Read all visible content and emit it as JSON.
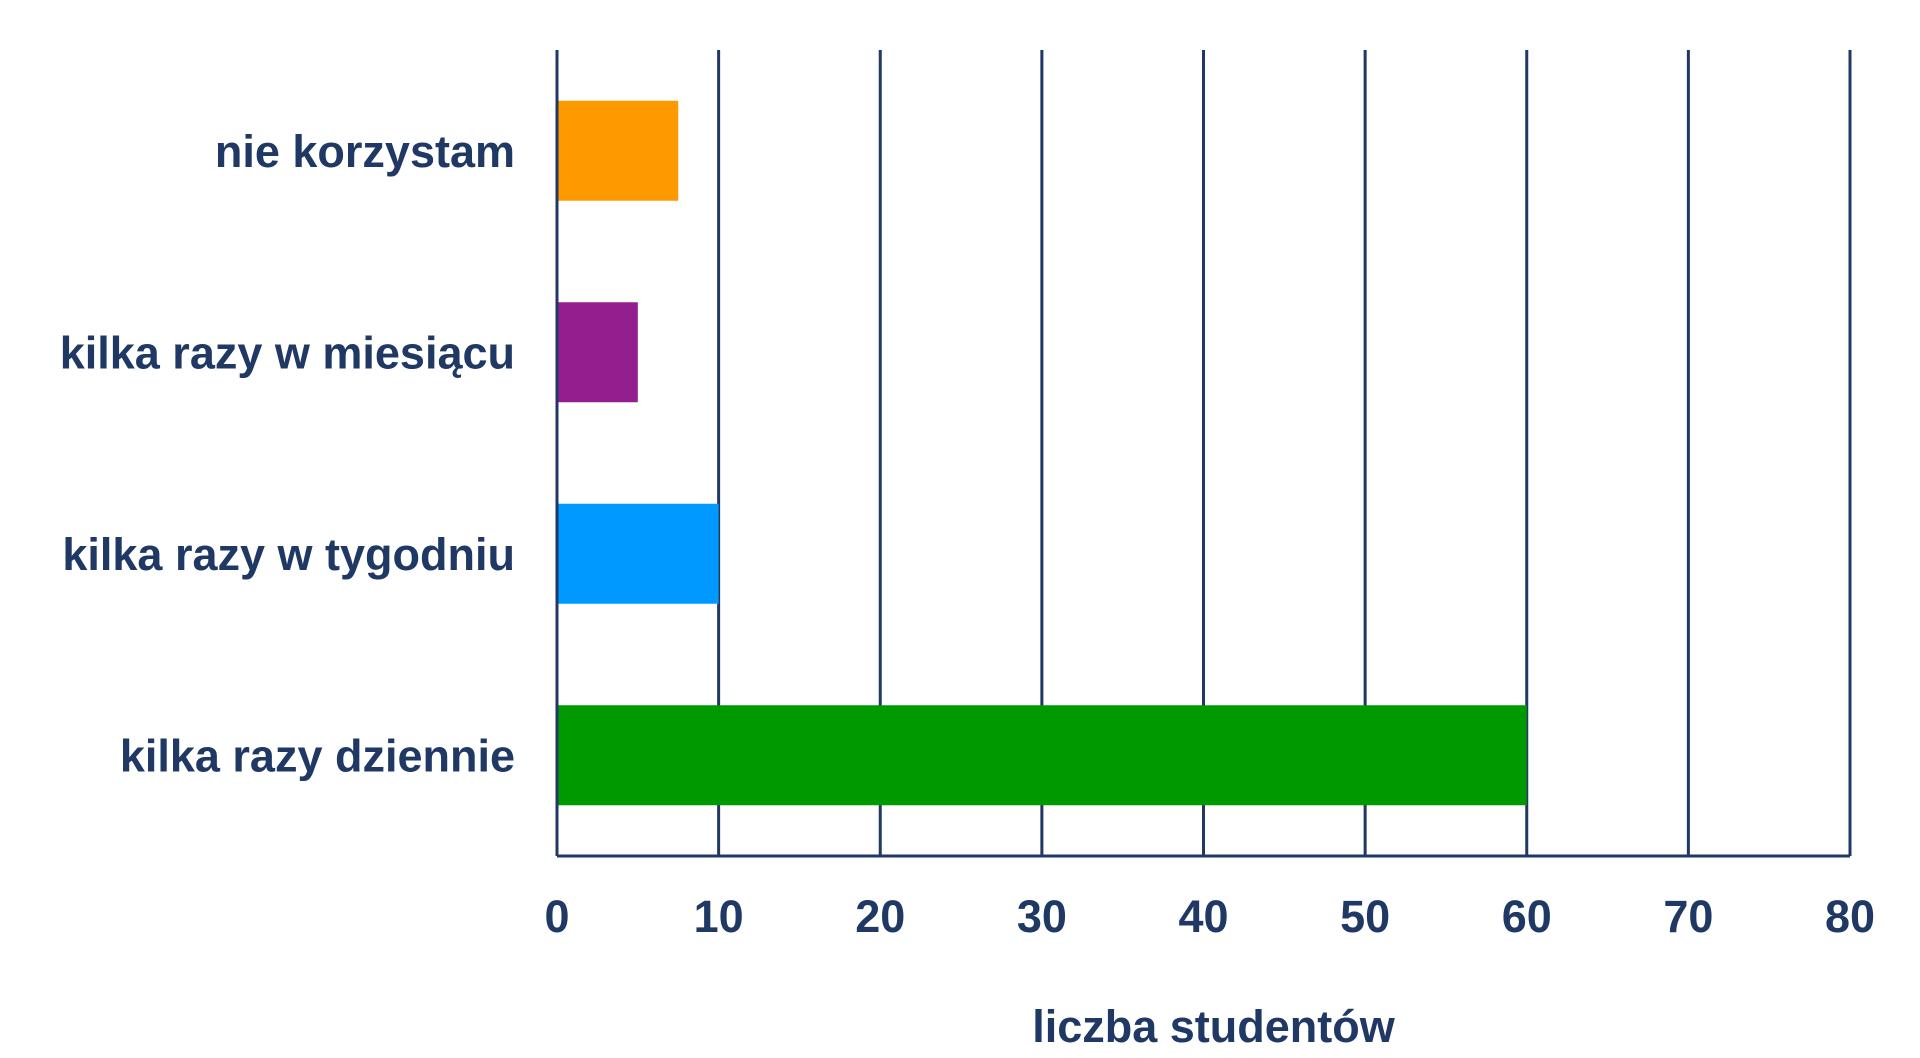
{
  "chart_data": {
    "type": "bar",
    "orientation": "horizontal",
    "categories": [
      "nie korzystam",
      "kilka razy w miesiącu",
      "kilka razy w tygodniu",
      "kilka razy dziennie"
    ],
    "values": [
      7.5,
      5,
      10,
      60
    ],
    "colors": [
      "#ff9900",
      "#931e8e",
      "#0099ff",
      "#009900"
    ],
    "xlabel": "liczba studentów",
    "xlim": [
      0,
      80
    ],
    "xticks": [
      "0",
      "10",
      "20",
      "30",
      "40",
      "50",
      "60",
      "70",
      "80"
    ],
    "grid": true,
    "text_color": "#1f3864"
  }
}
